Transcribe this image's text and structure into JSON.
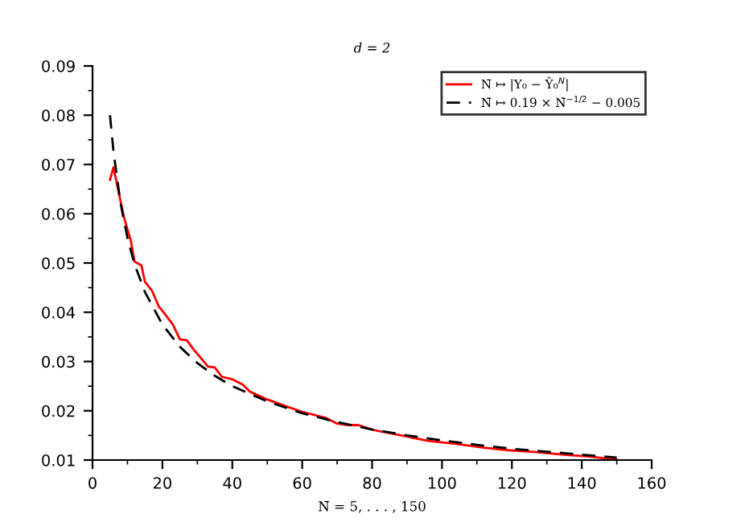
{
  "chart_data": {
    "type": "line",
    "title": "d = 2",
    "xlabel": "N̄ = 5, . . . , 150",
    "xlim": [
      0,
      160
    ],
    "ylim": [
      0.01,
      0.09
    ],
    "xticks": [
      0,
      {
        "value": 10,
        "label": null
      },
      20,
      {
        "value": 30,
        "label": null
      },
      40,
      {
        "value": 50,
        "label": null
      },
      60,
      {
        "value": 70,
        "label": null
      },
      80,
      {
        "value": 90,
        "label": null
      },
      100,
      {
        "value": 110,
        "label": null
      },
      120,
      {
        "value": 130,
        "label": null
      },
      140,
      {
        "value": 150,
        "label": null
      },
      160
    ],
    "yticks": [
      0.01,
      {
        "value": 0.015,
        "label": null
      },
      0.02,
      {
        "value": 0.025,
        "label": null
      },
      0.03,
      {
        "value": 0.035,
        "label": null
      },
      0.04,
      {
        "value": 0.045,
        "label": null
      },
      0.05,
      {
        "value": 0.055,
        "label": null
      },
      0.06,
      {
        "value": 0.065,
        "label": null
      },
      0.07,
      {
        "value": 0.075,
        "label": null
      },
      0.08,
      {
        "value": 0.085,
        "label": null
      },
      0.09
    ],
    "grid": false,
    "legend": "top right",
    "series": [
      {
        "name": "N̄ ↦ |Y₀ − Ŷ₀$^{N}$|",
        "color": "#ff0000",
        "line_style": "solid",
        "x": [
          5,
          6,
          8,
          9,
          11,
          12,
          14,
          15,
          17,
          19,
          20,
          23,
          25,
          27,
          29,
          31,
          33,
          35,
          37,
          40,
          43,
          45,
          50,
          55,
          60,
          67,
          70,
          73,
          76,
          81,
          89,
          96,
          104,
          112,
          119,
          127,
          135,
          142,
          150
        ],
        "values": [
          0.0669,
          0.0694,
          0.0626,
          0.0593,
          0.0544,
          0.0503,
          0.0495,
          0.0462,
          0.0444,
          0.0411,
          0.0403,
          0.0375,
          0.0345,
          0.0343,
          0.0324,
          0.0307,
          0.029,
          0.0288,
          0.0269,
          0.0264,
          0.0253,
          0.0239,
          0.0223,
          0.021,
          0.0198,
          0.0185,
          0.0174,
          0.0171,
          0.0171,
          0.016,
          0.0149,
          0.0139,
          0.0133,
          0.0125,
          0.012,
          0.0116,
          0.0111,
          0.0107,
          0.0101
        ]
      },
      {
        "name": "N̄ ↦ 0.19 × N̄$^{−1/2}$ − 0.005",
        "color": "#000000",
        "line_style": "dashed",
        "x": [
          5,
          6,
          8,
          10,
          12,
          15,
          20,
          25,
          30,
          35,
          40,
          50,
          60,
          70,
          80,
          90,
          100,
          110,
          120,
          130,
          140,
          150
        ],
        "values": [
          0.08,
          0.0726,
          0.0622,
          0.0551,
          0.0498,
          0.0441,
          0.0375,
          0.033,
          0.0297,
          0.0271,
          0.025,
          0.0219,
          0.0195,
          0.0177,
          0.0162,
          0.015,
          0.014,
          0.0131,
          0.0123,
          0.0117,
          0.0111,
          0.0105
        ]
      }
    ]
  }
}
